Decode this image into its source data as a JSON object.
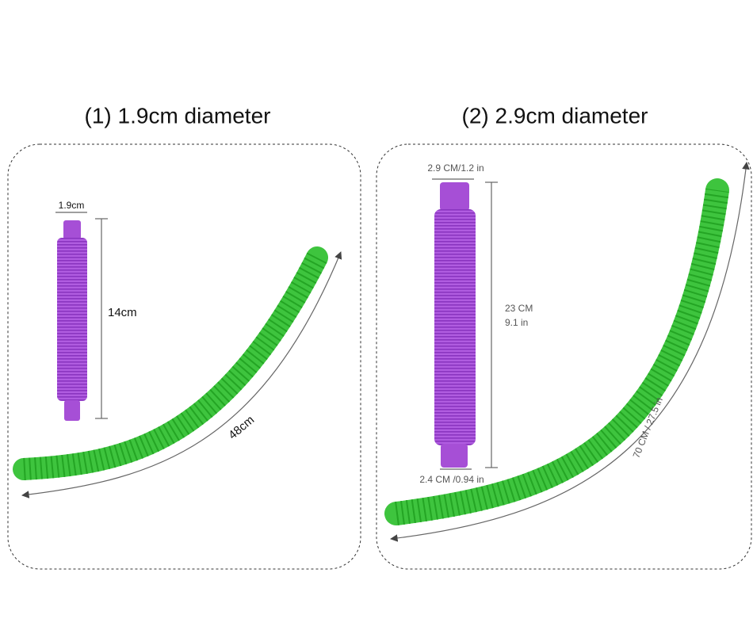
{
  "panels": [
    {
      "title": "(1) 1.9cm diameter",
      "diameter_label": "1.9cm",
      "length_label": "14cm",
      "stretched_label": "48cm"
    },
    {
      "title": "(2) 2.9cm diameter",
      "top_label": "2.9 CM/1.2 in",
      "length_label_cm": "23 CM",
      "length_label_in": "9.1 in",
      "bottom_label": "2.4 CM /0.94 in",
      "stretched_label": "70 CM / 27.5 in"
    }
  ]
}
